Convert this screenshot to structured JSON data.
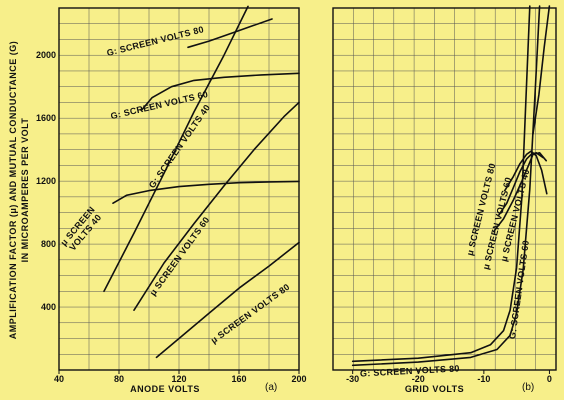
{
  "figure": {
    "ylabel_line1": "AMPLIFICATION FACTOR (μ) AND MUTUAL CONDUCTANCE (G)",
    "ylabel_line2": "IN MICROAMPERES PER VOLT",
    "background": "#f7ef8a",
    "line_color": "#111111",
    "grid_color": "#555555"
  },
  "chart_data": [
    {
      "type": "line",
      "panel_tag": "(a)",
      "xlabel": "ANODE VOLTS",
      "xlim": [
        40,
        200
      ],
      "ylim": [
        0,
        2300
      ],
      "xticks": [
        40,
        80,
        120,
        160,
        200
      ],
      "yticks": [
        400,
        800,
        1200,
        1600,
        2000
      ],
      "grid": true,
      "series": [
        {
          "name": "G: SCREEN VOLTS 80",
          "x": [
            126,
            140,
            155,
            170,
            182
          ],
          "y": [
            2050,
            2090,
            2140,
            2190,
            2230
          ]
        },
        {
          "name": "G: SCREEN VOLTS 60",
          "x": [
            95,
            102,
            115,
            130,
            150,
            175,
            200
          ],
          "y": [
            1650,
            1730,
            1800,
            1840,
            1860,
            1875,
            1885
          ]
        },
        {
          "name": "G: SCREEN VOLTS 40",
          "x": [
            70,
            90,
            110,
            130,
            150,
            166
          ],
          "y": [
            500,
            870,
            1250,
            1640,
            2000,
            2310
          ]
        },
        {
          "name": "μ SCREEN VOLTS 40",
          "x": [
            76,
            85,
            100,
            120,
            140,
            160,
            180,
            200
          ],
          "y": [
            1060,
            1110,
            1140,
            1165,
            1180,
            1190,
            1195,
            1198
          ]
        },
        {
          "name": "μ SCREEN VOLTS 60",
          "x": [
            90,
            110,
            130,
            150,
            170,
            190,
            200
          ],
          "y": [
            380,
            680,
            930,
            1170,
            1400,
            1610,
            1700
          ]
        },
        {
          "name": "μ SCREEN VOLTS 80",
          "x": [
            105,
            120,
            140,
            160,
            180,
            200
          ],
          "y": [
            80,
            200,
            360,
            520,
            660,
            810
          ]
        }
      ]
    },
    {
      "type": "line",
      "panel_tag": "(b)",
      "xlabel": "GRID VOLTS",
      "xlim": [
        -33,
        1
      ],
      "ylim": [
        0,
        2300
      ],
      "xticks": [
        -30,
        -20,
        -10,
        0
      ],
      "grid": true,
      "series": [
        {
          "name": "G: SCREEN VOLTS 80",
          "x": [
            -30,
            -20,
            -12,
            -9,
            -7,
            -6,
            -5,
            -4.2,
            -3.6,
            -3
          ],
          "y": [
            55,
            75,
            110,
            160,
            250,
            380,
            650,
            1100,
            1700,
            2320
          ]
        },
        {
          "name": "G: SCREEN VOLTS 60",
          "x": [
            -30,
            -20,
            -12,
            -8,
            -6,
            -5,
            -4,
            -3,
            -2.2,
            -1.5
          ],
          "y": [
            30,
            50,
            80,
            130,
            220,
            360,
            640,
            1150,
            1750,
            2320
          ]
        },
        {
          "name": "μ SCREEN VOLTS 80",
          "x": [
            -7.8,
            -6.5,
            -5.5,
            -4.5,
            -3.5,
            -2.8,
            -2,
            -1
          ],
          "y": [
            980,
            1060,
            1160,
            1260,
            1340,
            1370,
            1380,
            1350
          ]
        },
        {
          "name": "μ SCREEN VOLTS 60",
          "x": [
            -8.5,
            -7,
            -5.5,
            -4.2,
            -3.2,
            -2.5,
            -1.5,
            -0.5
          ],
          "y": [
            880,
            960,
            1080,
            1200,
            1300,
            1370,
            1380,
            1330
          ]
        },
        {
          "name": "μ SCREEN VOLTS 40",
          "x": [
            -6.8,
            -5.5,
            -4.5,
            -3.5,
            -2.8,
            -2,
            -1.2,
            -0.4
          ],
          "y": [
            1140,
            1230,
            1310,
            1370,
            1390,
            1360,
            1270,
            1120
          ]
        },
        {
          "name": "G: SCREEN VOLTS 40",
          "x": [
            -2.5,
            -1.6,
            -0.8,
            0
          ],
          "y": [
            1500,
            1750,
            2050,
            2320
          ]
        }
      ]
    }
  ]
}
